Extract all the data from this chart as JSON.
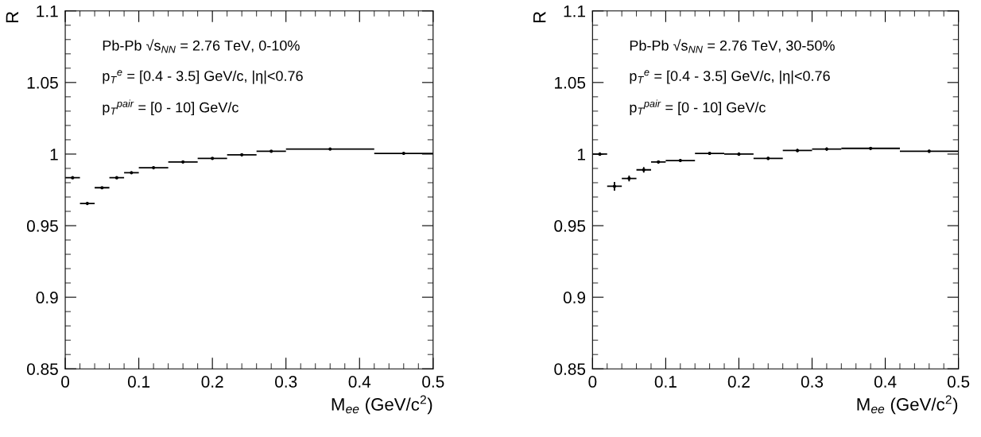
{
  "chart_data": [
    {
      "type": "scatter",
      "marker": "none",
      "ylabel": "R",
      "xlabel": "M$_{ee}$ (GeV/c$^{2}$)",
      "annotations": [
        "Pb-Pb √s$_{NN}$ = 2.76 TeV, 0-10%",
        "p$_{T}$$^{e}$ = [0.4 - 3.5] GeV/c, |η|<0.76",
        "p$_{T}$$^{pair}$ = [0 - 10] GeV/c"
      ],
      "xlim": [
        0,
        0.5
      ],
      "xticks": [
        0,
        0.1,
        0.2,
        0.3,
        0.4,
        0.5
      ],
      "ylim": [
        0.85,
        1.1
      ],
      "yticks": [
        0.85,
        0.9,
        0.95,
        1,
        1.05,
        1.1
      ],
      "grid": false,
      "series": [
        {
          "color": "#000000",
          "x": [
            0.01,
            0.03,
            0.05,
            0.07,
            0.09,
            0.12,
            0.16,
            0.2,
            0.24,
            0.28,
            0.36,
            0.46
          ],
          "values": [
            0.9835,
            0.9655,
            0.9765,
            0.9835,
            0.987,
            0.9905,
            0.9945,
            0.997,
            0.9995,
            1.002,
            1.0035,
            1.0005
          ],
          "xerrors": [
            0.01,
            0.01,
            0.01,
            0.01,
            0.01,
            0.02,
            0.02,
            0.02,
            0.02,
            0.02,
            0.06,
            0.04
          ]
        }
      ]
    },
    {
      "type": "scatter",
      "marker": "none",
      "ylabel": "R",
      "xlabel": "M$_{ee}$ (GeV/c$^{2}$)",
      "annotations": [
        "Pb-Pb √s$_{NN}$ = 2.76 TeV, 30-50%",
        "p$_{T}$$^{e}$ = [0.4 - 3.5] GeV/c, |η|<0.76",
        "p$_{T}$$^{pair}$ = [0 - 10] GeV/c"
      ],
      "xlim": [
        0,
        0.5
      ],
      "xticks": [
        0,
        0.1,
        0.2,
        0.3,
        0.4,
        0.5
      ],
      "ylim": [
        0.85,
        1.1
      ],
      "yticks": [
        0.85,
        0.9,
        0.95,
        1,
        1.05,
        1.1
      ],
      "grid": false,
      "series": [
        {
          "color": "#000000",
          "x": [
            0.01,
            0.03,
            0.05,
            0.07,
            0.09,
            0.12,
            0.16,
            0.2,
            0.24,
            0.28,
            0.32,
            0.38,
            0.46
          ],
          "values": [
            1.0,
            0.9775,
            0.983,
            0.989,
            0.9945,
            0.9955,
            1.0005,
            1.0,
            0.997,
            1.0025,
            1.0035,
            1.004,
            1.002
          ],
          "xerrors": [
            0.01,
            0.01,
            0.01,
            0.01,
            0.01,
            0.02,
            0.02,
            0.02,
            0.02,
            0.02,
            0.02,
            0.04,
            0.04
          ],
          "errors": [
            0.001,
            0.003,
            0.002,
            0.002,
            0.001,
            0.001,
            0.001,
            0.001,
            0.001,
            0.001,
            0.001,
            0.001,
            0.001
          ]
        }
      ]
    }
  ]
}
